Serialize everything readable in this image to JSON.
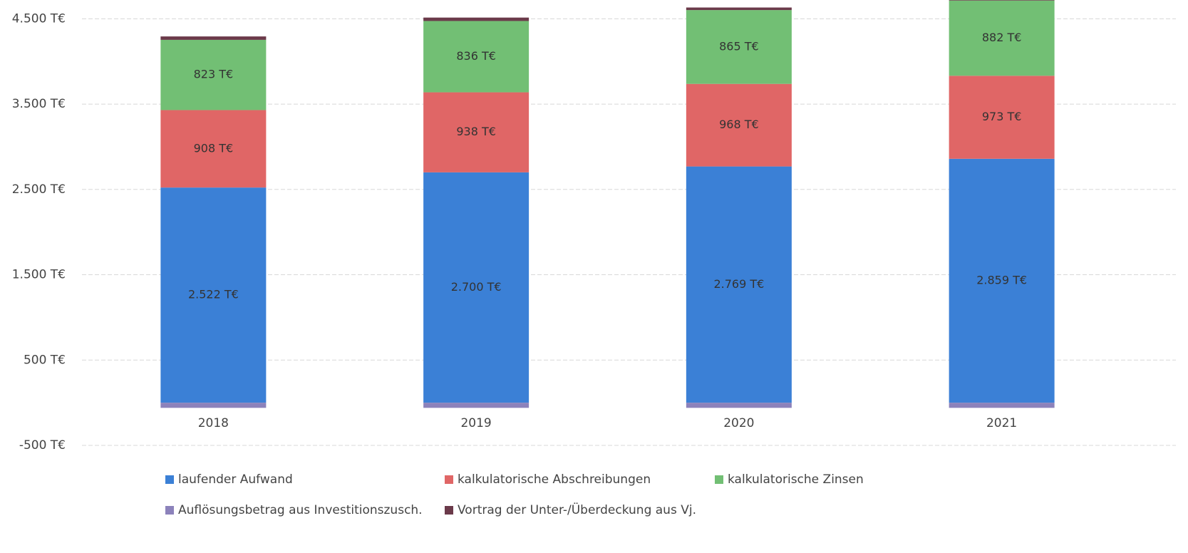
{
  "chart_data": {
    "type": "stacked_bar",
    "categories": [
      "2018",
      "2019",
      "2020",
      "2021"
    ],
    "series": [
      {
        "name": "laufender Aufwand",
        "color": "#3b80d6",
        "values": [
          2522,
          2700,
          2769,
          2859
        ],
        "value_labels": [
          "2.522 T€",
          "2.700 T€",
          "2.769 T€",
          "2.859 T€"
        ]
      },
      {
        "name": "kalkulatorische Abschreibungen",
        "color": "#e06666",
        "values": [
          908,
          938,
          968,
          973
        ],
        "value_labels": [
          "908 T€",
          "938 T€",
          "968 T€",
          "973 T€"
        ]
      },
      {
        "name": "kalkulatorische Zinsen",
        "color": "#72bf74",
        "values": [
          823,
          836,
          865,
          882
        ],
        "value_labels": [
          "823 T€",
          "836 T€",
          "865 T€",
          "882 T€"
        ]
      },
      {
        "name": "Auflösungsbetrag aus Investitionszusch.",
        "color": "#8c82bb",
        "values": [
          -60,
          -60,
          -60,
          -60
        ]
      },
      {
        "name": "Vortrag der Unter-/Überdeckung aus Vj.",
        "color": "#6b3a4a",
        "values": [
          40,
          40,
          30,
          30
        ]
      }
    ],
    "ylim": [
      -500,
      4720
    ],
    "yticks": [
      {
        "value": -500,
        "label": "-500 T€"
      },
      {
        "value": 500,
        "label": "500 T€"
      },
      {
        "value": 1500,
        "label": "1.500 T€"
      },
      {
        "value": 2500,
        "label": "2.500 T€"
      },
      {
        "value": 3500,
        "label": "3.500 T€"
      },
      {
        "value": 4500,
        "label": "4.500 T€"
      }
    ],
    "grid": true,
    "legend": "bottom"
  }
}
